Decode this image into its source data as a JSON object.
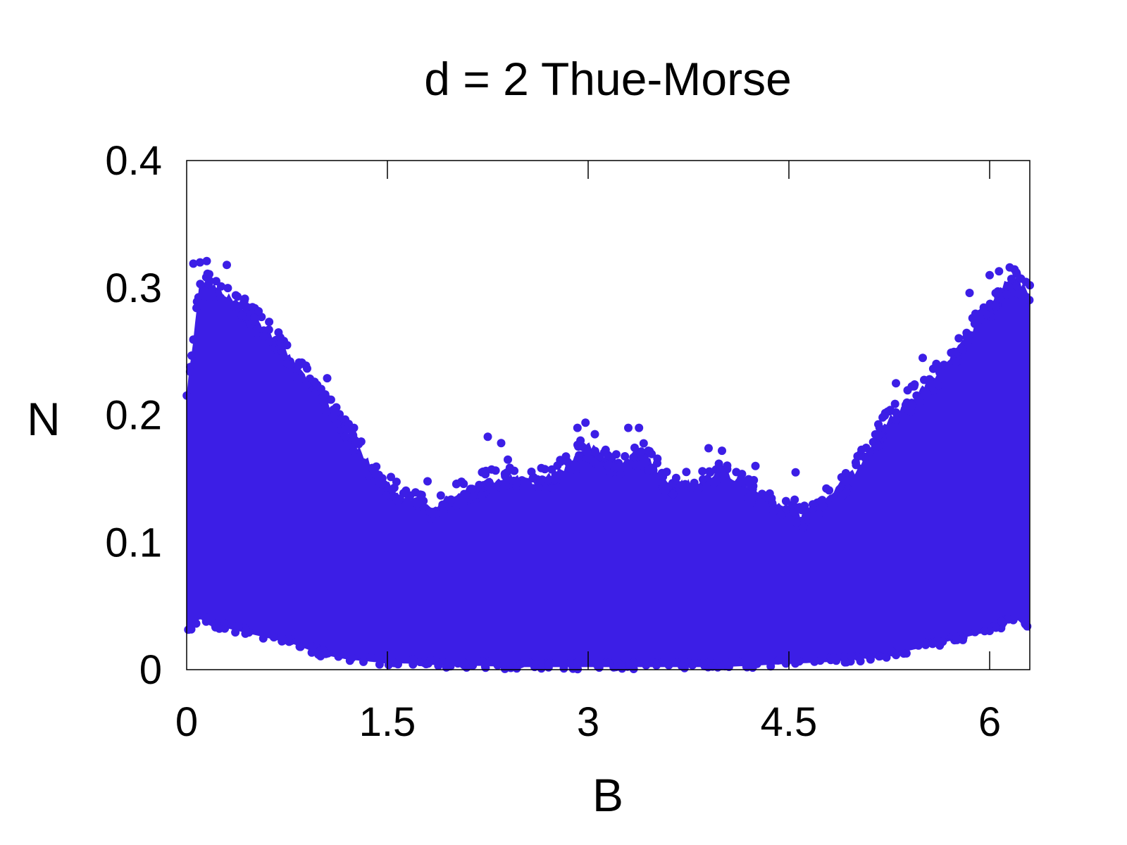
{
  "chart_data": {
    "type": "scatter",
    "title": "d = 2 Thue-Morse",
    "xlabel": "B",
    "ylabel": "N",
    "xlim": [
      0,
      6.3
    ],
    "ylim": [
      0,
      0.4
    ],
    "xticks": [
      "0",
      "1.5",
      "3",
      "4.5",
      "6"
    ],
    "xtick_values": [
      0,
      1.5,
      3,
      4.5,
      6
    ],
    "yticks": [
      "0",
      "0.1",
      "0.2",
      "0.3",
      "0.4"
    ],
    "ytick_values": [
      0,
      0.1,
      0.2,
      0.3,
      0.4
    ],
    "grid": false,
    "legend": "none",
    "marker_color": "#3c1ee6",
    "envelope": {
      "description_values": "upper and lower bounds of the dense point cloud, sampled in B",
      "B": [
        0.0,
        0.1,
        0.2,
        0.4,
        0.6,
        0.8,
        1.0,
        1.2,
        1.4,
        1.6,
        1.8,
        2.0,
        2.2,
        2.4,
        2.6,
        2.8,
        3.0,
        3.2,
        3.4,
        3.6,
        3.8,
        4.0,
        4.2,
        4.4,
        4.6,
        4.8,
        5.0,
        5.2,
        5.4,
        5.6,
        5.8,
        6.0,
        6.1,
        6.2,
        6.3
      ],
      "N_upper": [
        0.22,
        0.31,
        0.305,
        0.29,
        0.27,
        0.245,
        0.22,
        0.19,
        0.16,
        0.14,
        0.13,
        0.14,
        0.15,
        0.155,
        0.15,
        0.16,
        0.18,
        0.165,
        0.175,
        0.15,
        0.15,
        0.16,
        0.145,
        0.135,
        0.125,
        0.14,
        0.16,
        0.195,
        0.215,
        0.235,
        0.26,
        0.29,
        0.305,
        0.31,
        0.3
      ],
      "N_lower": [
        0.03,
        0.04,
        0.035,
        0.03,
        0.025,
        0.02,
        0.012,
        0.008,
        0.006,
        0.005,
        0.004,
        0.003,
        0.003,
        0.002,
        0.002,
        0.002,
        0.002,
        0.002,
        0.002,
        0.002,
        0.002,
        0.002,
        0.003,
        0.004,
        0.005,
        0.006,
        0.008,
        0.01,
        0.015,
        0.02,
        0.025,
        0.03,
        0.035,
        0.04,
        0.03
      ]
    },
    "outliers": [
      [
        0.05,
        0.319
      ],
      [
        0.1,
        0.32
      ],
      [
        0.15,
        0.321
      ],
      [
        0.3,
        0.318
      ],
      [
        0.45,
        0.285
      ],
      [
        0.75,
        0.255
      ],
      [
        1.05,
        0.229
      ],
      [
        1.25,
        0.19
      ],
      [
        1.8,
        0.148
      ],
      [
        2.25,
        0.183
      ],
      [
        2.35,
        0.178
      ],
      [
        2.4,
        0.165
      ],
      [
        2.92,
        0.19
      ],
      [
        2.98,
        0.194
      ],
      [
        3.05,
        0.185
      ],
      [
        3.3,
        0.19
      ],
      [
        3.38,
        0.19
      ],
      [
        3.45,
        0.172
      ],
      [
        3.9,
        0.174
      ],
      [
        4.0,
        0.172
      ],
      [
        4.25,
        0.16
      ],
      [
        4.55,
        0.155
      ],
      [
        5.3,
        0.225
      ],
      [
        5.5,
        0.245
      ],
      [
        5.85,
        0.296
      ],
      [
        6.0,
        0.31
      ],
      [
        6.07,
        0.313
      ],
      [
        6.15,
        0.316
      ],
      [
        6.2,
        0.312
      ],
      [
        6.3,
        0.302
      ]
    ]
  }
}
